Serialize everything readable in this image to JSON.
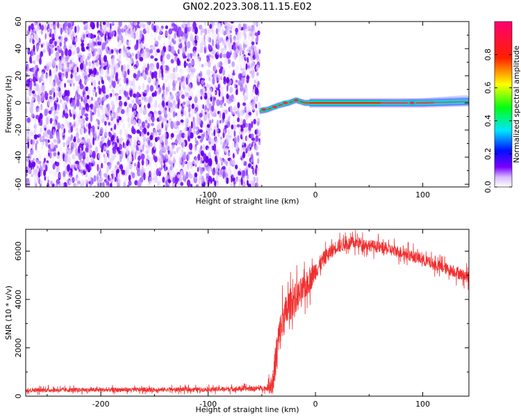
{
  "figure": {
    "title": "GN02.2023.308.11.15.E02"
  },
  "chart_data": [
    {
      "type": "heatmap",
      "xlabel": "Height of straight line (km)",
      "ylabel": "Frequency (Hz)",
      "xlim": [
        -270,
        143
      ],
      "ylim": [
        -62,
        60
      ],
      "xticks": [
        -200,
        -100,
        0,
        100
      ],
      "xtick_labels": [
        "-200",
        "-100",
        "0",
        "100"
      ],
      "yticks": [
        -60,
        -40,
        -20,
        0,
        20,
        40,
        60
      ],
      "ytick_labels": [
        "-60",
        "-40",
        "-20",
        "0",
        "20",
        "40",
        "60"
      ],
      "noise_region_x": [
        -270,
        -52
      ],
      "ridge_frequency": [
        {
          "x": -52,
          "y": -6
        },
        {
          "x": -45,
          "y": -5
        },
        {
          "x": -35,
          "y": -2
        },
        {
          "x": -25,
          "y": 0
        },
        {
          "x": -18,
          "y": 2
        },
        {
          "x": -10,
          "y": 0
        },
        {
          "x": 0,
          "y": 0
        },
        {
          "x": 50,
          "y": 0
        },
        {
          "x": 100,
          "y": 0
        },
        {
          "x": 143,
          "y": 1
        }
      ],
      "colorbar": {
        "label": "Normalized spectral amplitude",
        "range": [
          0,
          1
        ],
        "ticks": [
          0.0,
          0.2,
          0.4,
          0.6,
          0.8
        ],
        "tick_labels": [
          "0.0",
          "0.2",
          "0.4",
          "0.6",
          "0.8"
        ],
        "colormap": "hsv-rainbow (white-purple-blue-cyan-green-yellow-red-magenta)"
      },
      "grid": false
    },
    {
      "type": "line",
      "xlabel": "Height of straight line (km)",
      "ylabel": "SNR (10 * v/v)",
      "xlim": [
        -270,
        143
      ],
      "ylim": [
        0,
        6900
      ],
      "xticks": [
        -200,
        -100,
        0,
        100
      ],
      "xtick_labels": [
        "-200",
        "-100",
        "0",
        "100"
      ],
      "yticks": [
        0,
        2000,
        4000,
        6000
      ],
      "ytick_labels": [
        "0",
        "2000",
        "4000",
        "6000"
      ],
      "color": "#f03030",
      "x": [
        -270,
        -200,
        -150,
        -100,
        -80,
        -60,
        -45,
        -40,
        -35,
        -30,
        -25,
        -20,
        -15,
        -10,
        -5,
        0,
        5,
        10,
        20,
        30,
        40,
        50,
        60,
        70,
        80,
        90,
        100,
        110,
        120,
        130,
        143
      ],
      "y": [
        250,
        260,
        270,
        280,
        300,
        310,
        330,
        500,
        2200,
        3200,
        3700,
        4000,
        4200,
        4500,
        4800,
        5200,
        5500,
        5800,
        6200,
        6300,
        6350,
        6250,
        6150,
        6050,
        5950,
        5800,
        5650,
        5450,
        5300,
        5150,
        4900
      ],
      "noise_amplitude": [
        130,
        130,
        130,
        130,
        150,
        150,
        150,
        800,
        1200,
        1100,
        1000,
        900,
        900,
        800,
        700,
        600,
        500,
        450,
        400,
        400,
        350,
        350,
        350,
        350,
        350,
        350,
        350,
        350,
        350,
        350,
        350
      ],
      "grid": false
    }
  ]
}
